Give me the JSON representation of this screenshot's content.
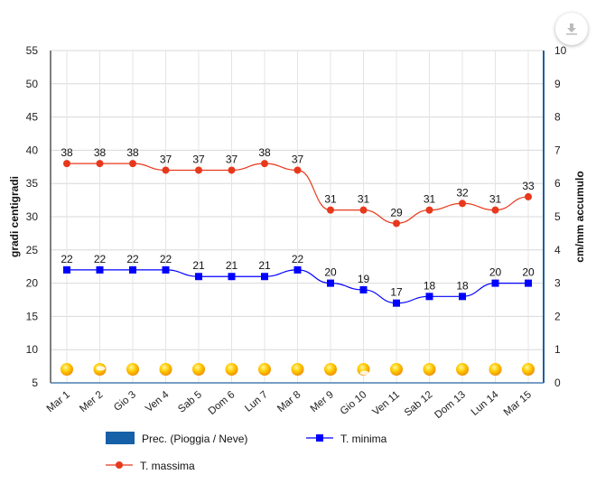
{
  "download_button": {
    "icon": "download-icon"
  },
  "chart_data": {
    "type": "line",
    "categories": [
      "Mar 1",
      "Mer 2",
      "Gio 3",
      "Ven 4",
      "Sab 5",
      "Dom 6",
      "Lun 7",
      "Mar 8",
      "Mer 9",
      "Gio 10",
      "Ven 11",
      "Sab 12",
      "Dom 13",
      "Lun 14",
      "Mar 15"
    ],
    "ylabel": "gradi centigradi",
    "y2label": "cm/mm accumulo",
    "ylim": [
      5,
      55
    ],
    "yticks": [
      5,
      10,
      15,
      20,
      25,
      30,
      35,
      40,
      45,
      50,
      55
    ],
    "y2lim": [
      0,
      10
    ],
    "y2ticks": [
      0,
      1,
      2,
      3,
      4,
      5,
      6,
      7,
      8,
      9,
      10
    ],
    "grid": true,
    "legend_position": "bottom",
    "series": [
      {
        "name": "Prec. (Pioggia / Neve)",
        "type": "bar",
        "axis": "right",
        "color": "#1660a8",
        "values": [
          0,
          0,
          0,
          0,
          0,
          0,
          0,
          0,
          0,
          0,
          0,
          0,
          0,
          0,
          0
        ]
      },
      {
        "name": "T. minima",
        "type": "line",
        "marker": "square",
        "color": "#0000ff",
        "values": [
          22,
          22,
          22,
          22,
          21,
          21,
          21,
          22,
          20,
          19,
          17,
          18,
          18,
          20,
          20
        ]
      },
      {
        "name": "T. massima",
        "type": "line",
        "marker": "circle",
        "color": "#e8381c",
        "values": [
          38,
          38,
          38,
          37,
          37,
          37,
          38,
          37,
          31,
          31,
          29,
          31,
          32,
          31,
          33
        ]
      }
    ],
    "weather_icons": [
      "sun",
      "sun-cloud",
      "sun",
      "sun",
      "sun",
      "sun",
      "sun",
      "sun",
      "sun",
      "sun-cloud",
      "sun",
      "sun",
      "sun",
      "sun",
      "sun"
    ]
  }
}
